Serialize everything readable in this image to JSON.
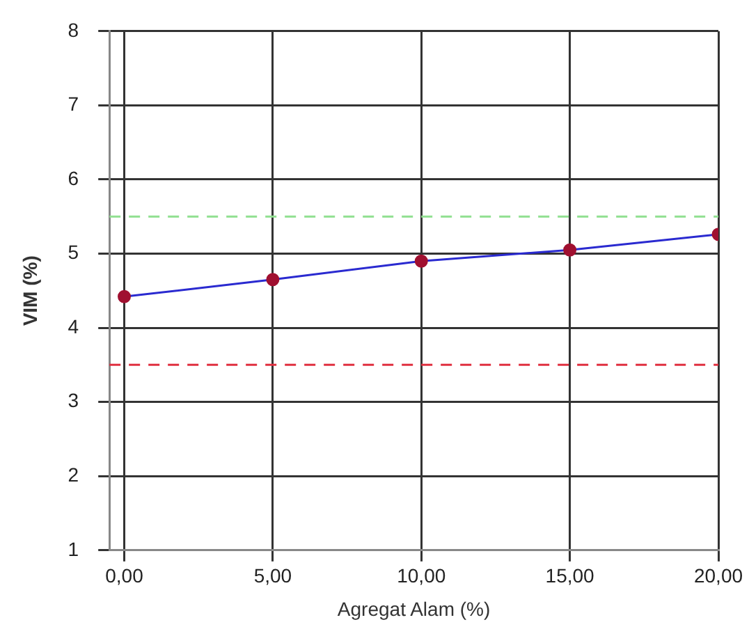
{
  "chart_data": {
    "type": "line",
    "xlabel": "Agregat Alam (%)",
    "ylabel": "VIM (%)",
    "x": [
      0,
      5,
      10,
      15,
      20
    ],
    "series": [
      {
        "color": "#2a2ad0",
        "colors": [
          "#a01030",
          "#a01030",
          "#a01030",
          "#a01030",
          "#a01030"
        ],
        "values": [
          4.42,
          4.65,
          4.9,
          5.05,
          5.26
        ]
      }
    ],
    "xlim": [
      -0.5,
      20
    ],
    "xticks": [
      {
        "value": 0,
        "label": "0,00"
      },
      {
        "value": 5,
        "label": "5,00"
      },
      {
        "value": 10,
        "label": "10,00"
      },
      {
        "value": 15,
        "label": "15,00"
      },
      {
        "value": 20,
        "label": "20,00"
      }
    ],
    "ylim": [
      1,
      8
    ],
    "yticks": [
      1,
      2,
      3,
      4,
      5,
      6,
      7,
      8
    ],
    "ref_lines": [
      {
        "axis": "y",
        "value": 5.5,
        "color": "#90e090",
        "line_style": "dashed"
      },
      {
        "axis": "y",
        "value": 3.5,
        "color": "#e03040",
        "line_style": "dashed"
      }
    ],
    "grid": true,
    "marker": "circle",
    "line_style": "solid",
    "legend": false
  }
}
